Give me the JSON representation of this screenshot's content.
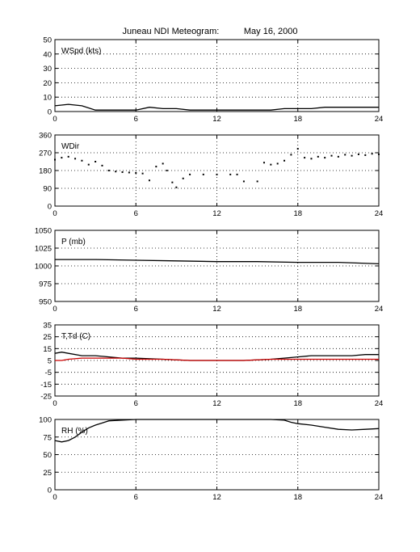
{
  "title": "Juneau NDI Meteogram:          May 16, 2000",
  "chart_data": [
    {
      "type": "line",
      "label": "WSpd (kts)",
      "xlim": [
        0,
        24
      ],
      "ylim": [
        0,
        50
      ],
      "xticks": [
        0,
        6,
        12,
        18,
        24
      ],
      "yticks": [
        0,
        10,
        20,
        30,
        40,
        50
      ],
      "grid": true,
      "series": [
        {
          "color": "#000000",
          "x": [
            0,
            1,
            2,
            3,
            4,
            5,
            6,
            7,
            8,
            9,
            10,
            11,
            12,
            13,
            14,
            15,
            16,
            17,
            18,
            19,
            20,
            21,
            22,
            23,
            24
          ],
          "y": [
            4,
            5,
            4,
            1,
            1,
            1,
            1,
            3,
            2,
            2,
            1,
            1,
            1,
            1,
            1,
            1,
            1,
            2,
            2,
            2,
            3,
            3,
            3,
            3,
            3
          ]
        }
      ]
    },
    {
      "type": "scatter",
      "label": "WDir",
      "xlim": [
        0,
        24
      ],
      "ylim": [
        0,
        360
      ],
      "xticks": [
        0,
        6,
        12,
        18,
        24
      ],
      "yticks": [
        0,
        90,
        180,
        270,
        360
      ],
      "grid": true,
      "series": [
        {
          "color": "#000000",
          "x": [
            0,
            0.5,
            1,
            1.5,
            2,
            2.5,
            3,
            3.5,
            4,
            4.5,
            5,
            5.5,
            6,
            6.5,
            7,
            7.5,
            8,
            8.3,
            8.7,
            9,
            9.5,
            10,
            11,
            12,
            13,
            13.5,
            14,
            15,
            15.5,
            16,
            16.5,
            17,
            17.5,
            18,
            18.5,
            19,
            19.5,
            20,
            20.5,
            21,
            21.5,
            22,
            22.5,
            23,
            23.5,
            24
          ],
          "y": [
            235,
            245,
            250,
            240,
            230,
            210,
            225,
            205,
            180,
            175,
            172,
            170,
            168,
            165,
            130,
            200,
            215,
            180,
            120,
            95,
            140,
            160,
            160,
            160,
            160,
            160,
            125,
            125,
            220,
            210,
            215,
            230,
            260,
            290,
            245,
            240,
            250,
            245,
            255,
            250,
            260,
            255,
            262,
            258,
            265,
            262
          ]
        }
      ]
    },
    {
      "type": "line",
      "label": "P (mb)",
      "xlim": [
        0,
        24
      ],
      "ylim": [
        950,
        1050
      ],
      "xticks": [
        0,
        6,
        12,
        18,
        24
      ],
      "yticks": [
        950,
        975,
        1000,
        1025,
        1050
      ],
      "grid": true,
      "series": [
        {
          "color": "#000000",
          "x": [
            0,
            3,
            6,
            9,
            12,
            15,
            18,
            21,
            24
          ],
          "y": [
            1009,
            1009,
            1008,
            1007,
            1006,
            1006,
            1005,
            1005,
            1003
          ]
        }
      ]
    },
    {
      "type": "line",
      "label": "T,Td (C)",
      "xlim": [
        0,
        24
      ],
      "ylim": [
        -25,
        35
      ],
      "xticks": [
        0,
        6,
        12,
        18,
        24
      ],
      "yticks": [
        -25,
        -15,
        -5,
        5,
        15,
        25,
        35
      ],
      "grid": true,
      "series": [
        {
          "color": "#000000",
          "x": [
            0,
            0.5,
            1,
            2,
            3,
            4,
            5,
            6,
            8,
            10,
            12,
            14,
            16,
            17,
            18,
            19,
            20,
            21,
            22,
            23,
            24
          ],
          "y": [
            11,
            12,
            11,
            9,
            9,
            8,
            7,
            7,
            6,
            5,
            5,
            5,
            6,
            7,
            8,
            9,
            9,
            9,
            9,
            10,
            10
          ]
        },
        {
          "color": "#cc0000",
          "x": [
            0,
            0.5,
            1,
            2,
            3,
            4,
            5,
            6,
            8,
            10,
            12,
            14,
            16,
            17,
            18,
            19,
            20,
            21,
            22,
            23,
            24
          ],
          "y": [
            5,
            5,
            6,
            7,
            7,
            7,
            7,
            6,
            6,
            5,
            5,
            5,
            6,
            6,
            6,
            6,
            6,
            6,
            6,
            6,
            6
          ]
        }
      ]
    },
    {
      "type": "line",
      "label": "RH (%)",
      "xlim": [
        0,
        24
      ],
      "ylim": [
        0,
        100
      ],
      "xticks": [
        0,
        6,
        12,
        18,
        24
      ],
      "yticks": [
        0,
        25,
        50,
        75,
        100
      ],
      "grid": true,
      "series": [
        {
          "color": "#000000",
          "x": [
            0,
            0.5,
            1,
            1.5,
            2,
            2.5,
            3,
            3.5,
            4,
            5,
            6,
            8,
            10,
            12,
            14,
            16,
            17,
            17.5,
            18,
            19,
            20,
            21,
            22,
            23,
            24
          ],
          "y": [
            70,
            68,
            70,
            75,
            82,
            88,
            92,
            95,
            98,
            99,
            100,
            100,
            100,
            100,
            100,
            100,
            99,
            96,
            94,
            92,
            89,
            86,
            85,
            86,
            87
          ]
        }
      ]
    }
  ]
}
